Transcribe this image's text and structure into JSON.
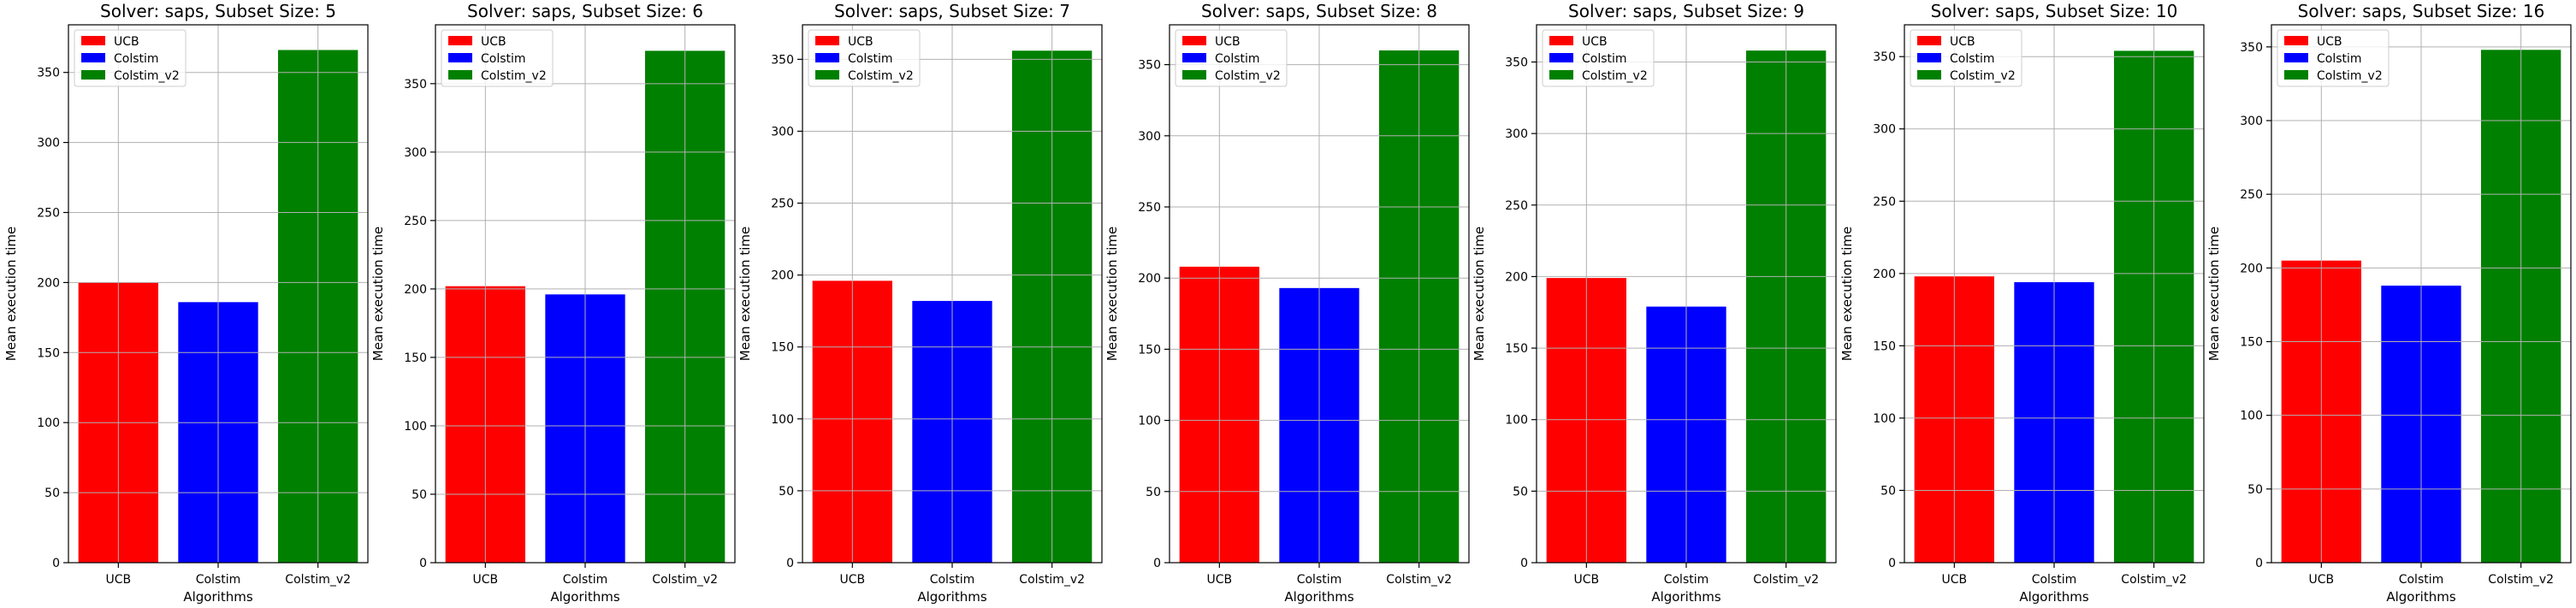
{
  "chart_data": [
    {
      "type": "bar",
      "title": "Solver: saps, Subset Size: 5",
      "xlabel": "Algorithms",
      "ylabel": "Mean execution time",
      "categories": [
        "UCB",
        "Colstim",
        "Colstim_v2"
      ],
      "values": [
        200,
        186,
        366
      ],
      "colors": [
        "#ff0000",
        "#0000ff",
        "#008000"
      ],
      "ylim": [
        0,
        384
      ],
      "yticks": [
        0,
        50,
        100,
        150,
        200,
        250,
        300,
        350
      ],
      "grid": true,
      "legend": "top-left",
      "legend_entries": [
        "UCB",
        "Colstim",
        "Colstim_v2"
      ]
    },
    {
      "type": "bar",
      "title": "Solver: saps, Subset Size: 6",
      "xlabel": "Algorithms",
      "ylabel": "Mean execution time",
      "categories": [
        "UCB",
        "Colstim",
        "Colstim_v2"
      ],
      "values": [
        202,
        196,
        374
      ],
      "colors": [
        "#ff0000",
        "#0000ff",
        "#008000"
      ],
      "ylim": [
        0,
        393
      ],
      "yticks": [
        0,
        50,
        100,
        150,
        200,
        250,
        300,
        350
      ],
      "grid": true,
      "legend": "top-left",
      "legend_entries": [
        "UCB",
        "Colstim",
        "Colstim_v2"
      ]
    },
    {
      "type": "bar",
      "title": "Solver: saps, Subset Size: 7",
      "xlabel": "Algorithms",
      "ylabel": "Mean execution time",
      "categories": [
        "UCB",
        "Colstim",
        "Colstim_v2"
      ],
      "values": [
        196,
        182,
        356
      ],
      "colors": [
        "#ff0000",
        "#0000ff",
        "#008000"
      ],
      "ylim": [
        0,
        374
      ],
      "yticks": [
        0,
        50,
        100,
        150,
        200,
        250,
        300,
        350
      ],
      "grid": true,
      "legend": "top-left",
      "legend_entries": [
        "UCB",
        "Colstim",
        "Colstim_v2"
      ]
    },
    {
      "type": "bar",
      "title": "Solver: saps, Subset Size: 8",
      "xlabel": "Algorithms",
      "ylabel": "Mean execution time",
      "categories": [
        "UCB",
        "Colstim",
        "Colstim_v2"
      ],
      "values": [
        208,
        193,
        360
      ],
      "colors": [
        "#ff0000",
        "#0000ff",
        "#008000"
      ],
      "ylim": [
        0,
        378
      ],
      "yticks": [
        0,
        50,
        100,
        150,
        200,
        250,
        300,
        350
      ],
      "grid": true,
      "legend": "top-left",
      "legend_entries": [
        "UCB",
        "Colstim",
        "Colstim_v2"
      ]
    },
    {
      "type": "bar",
      "title": "Solver: saps, Subset Size: 9",
      "xlabel": "Algorithms",
      "ylabel": "Mean execution time",
      "categories": [
        "UCB",
        "Colstim",
        "Colstim_v2"
      ],
      "values": [
        199,
        179,
        358
      ],
      "colors": [
        "#ff0000",
        "#0000ff",
        "#008000"
      ],
      "ylim": [
        0,
        376
      ],
      "yticks": [
        0,
        50,
        100,
        150,
        200,
        250,
        300,
        350
      ],
      "grid": true,
      "legend": "top-left",
      "legend_entries": [
        "UCB",
        "Colstim",
        "Colstim_v2"
      ]
    },
    {
      "type": "bar",
      "title": "Solver: saps, Subset Size: 10",
      "xlabel": "Algorithms",
      "ylabel": "Mean execution time",
      "categories": [
        "UCB",
        "Colstim",
        "Colstim_v2"
      ],
      "values": [
        198,
        194,
        354
      ],
      "colors": [
        "#ff0000",
        "#0000ff",
        "#008000"
      ],
      "ylim": [
        0,
        372
      ],
      "yticks": [
        0,
        50,
        100,
        150,
        200,
        250,
        300,
        350
      ],
      "grid": true,
      "legend": "top-left",
      "legend_entries": [
        "UCB",
        "Colstim",
        "Colstim_v2"
      ]
    },
    {
      "type": "bar",
      "title": "Solver: saps, Subset Size: 16",
      "xlabel": "Algorithms",
      "ylabel": "Mean execution time",
      "categories": [
        "UCB",
        "Colstim",
        "Colstim_v2"
      ],
      "values": [
        205,
        188,
        348
      ],
      "colors": [
        "#ff0000",
        "#0000ff",
        "#008000"
      ],
      "ylim": [
        0,
        365
      ],
      "yticks": [
        0,
        50,
        100,
        150,
        200,
        250,
        300,
        350
      ],
      "grid": true,
      "legend": "top-left",
      "legend_entries": [
        "UCB",
        "Colstim",
        "Colstim_v2"
      ]
    }
  ]
}
